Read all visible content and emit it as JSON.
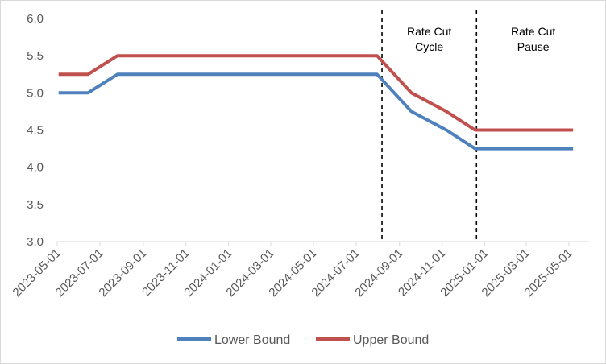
{
  "chart_data": {
    "type": "line",
    "title": "",
    "xlabel": "",
    "ylabel": "",
    "ylim": [
      3.0,
      6.0
    ],
    "yticks": [
      "3.0",
      "3.5",
      "4.0",
      "4.5",
      "5.0",
      "5.5",
      "6.0"
    ],
    "xlim": [
      "2023-05-01",
      "2025-05-31"
    ],
    "xticks": [
      "2023-05-01",
      "2023-07-01",
      "2023-09-01",
      "2023-11-01",
      "2024-01-01",
      "2024-03-01",
      "2024-05-01",
      "2024-07-01",
      "2024-09-01",
      "2024-11-01",
      "2025-01-01",
      "2025-03-01",
      "2025-05-01"
    ],
    "grid": false,
    "legend": "bottom",
    "series": [
      {
        "name": "Lower Bound",
        "color": "#4f81bd",
        "points": [
          {
            "x": "2023-05-03",
            "y": 5.0
          },
          {
            "x": "2023-06-14",
            "y": 5.0
          },
          {
            "x": "2023-07-26",
            "y": 5.25
          },
          {
            "x": "2024-07-31",
            "y": 5.25
          },
          {
            "x": "2024-09-18",
            "y": 4.75
          },
          {
            "x": "2024-11-07",
            "y": 4.5
          },
          {
            "x": "2024-12-18",
            "y": 4.25
          },
          {
            "x": "2025-05-07",
            "y": 4.25
          }
        ]
      },
      {
        "name": "Upper Bound",
        "color": "#c0504d",
        "points": [
          {
            "x": "2023-05-03",
            "y": 5.25
          },
          {
            "x": "2023-06-14",
            "y": 5.25
          },
          {
            "x": "2023-07-26",
            "y": 5.5
          },
          {
            "x": "2024-07-31",
            "y": 5.5
          },
          {
            "x": "2024-09-18",
            "y": 5.0
          },
          {
            "x": "2024-11-07",
            "y": 4.75
          },
          {
            "x": "2024-12-18",
            "y": 4.5
          },
          {
            "x": "2025-05-07",
            "y": 4.5
          }
        ]
      }
    ],
    "annotations": [
      {
        "lines": [
          "Rate Cut",
          "Cycle"
        ],
        "x_between": [
          "2024-08-07",
          "2024-12-20"
        ]
      },
      {
        "lines": [
          "Rate Cut",
          "Pause"
        ],
        "x_between": [
          "2024-12-20",
          "2025-05-31"
        ]
      }
    ],
    "vlines": [
      {
        "x": "2024-08-07",
        "style": "dashed",
        "color": "#000000"
      },
      {
        "x": "2024-12-20",
        "style": "dashed",
        "color": "#000000"
      }
    ]
  }
}
